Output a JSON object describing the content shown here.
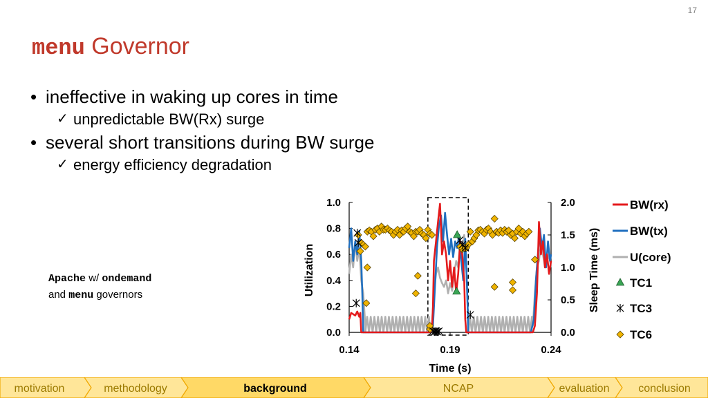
{
  "page": {
    "number": "17"
  },
  "title": {
    "mono": "menu",
    "text": "Governor"
  },
  "bullets": [
    {
      "text": "ineffective in waking up cores in time",
      "sub": "unpredictable BW(Rx) surge"
    },
    {
      "text": "several short  transitions during BW surge",
      "sub": "energy efficiency degradation"
    }
  ],
  "note": {
    "line1_mono_a": "Apache",
    "line1_text": "w/",
    "line1_mono_b": "ondemand",
    "line2_text": "and",
    "line2_mono": "menu",
    "line2_tail": "governors"
  },
  "nav": {
    "items": [
      "motivation",
      "methodology",
      "background",
      "NCAP",
      "evaluation",
      "conclusion"
    ],
    "active": "background",
    "colors": {
      "fill": "#ffe699",
      "active_fill": "#ffd966",
      "border": "#f0a800",
      "text": "#9c7a00",
      "active_text": "#000000"
    }
  },
  "chart_data": {
    "type": "line",
    "xlabel": "Time (s)",
    "ylabel_left": "Utilization",
    "ylabel_right": "Sleep Time (ms)",
    "xlim": [
      0.14,
      0.24
    ],
    "ylim_left": [
      0,
      1.0
    ],
    "ylim_right": [
      0,
      2.0
    ],
    "x_ticks": [
      "0.14",
      "0.19",
      "0.24"
    ],
    "y_ticks_left": [
      "0.0",
      "0.2",
      "0.4",
      "0.6",
      "0.8",
      "1.0"
    ],
    "y_ticks_right": [
      "0.0",
      "0.5",
      "1.0",
      "1.5",
      "2.0"
    ],
    "highlight_box": [
      0.179,
      0.199
    ],
    "series": [
      {
        "name": "BW(rx)",
        "axis": "left",
        "color": "#e41a1c",
        "style": "line",
        "x": [
          0.14,
          0.141,
          0.142,
          0.143,
          0.144,
          0.145,
          0.1455,
          0.146,
          0.147,
          0.176,
          0.18,
          0.181,
          0.1815,
          0.182,
          0.183,
          0.184,
          0.185,
          0.1855,
          0.186,
          0.187,
          0.188,
          0.189,
          0.19,
          0.191,
          0.192,
          0.193,
          0.194,
          0.195,
          0.196,
          0.197,
          0.1975,
          0.198,
          0.23,
          0.231,
          0.232,
          0.233,
          0.2335,
          0.234,
          0.235,
          0.236,
          0.237,
          0.238,
          0.239,
          0.24
        ],
        "y": [
          0.1,
          0.15,
          0.14,
          0.13,
          0.16,
          0.12,
          0.15,
          0.0,
          0.0,
          0.0,
          0.0,
          0.02,
          0.2,
          0.55,
          0.7,
          0.85,
          0.99,
          0.8,
          0.6,
          0.7,
          0.6,
          0.4,
          0.55,
          0.35,
          0.5,
          0.3,
          0.45,
          0.7,
          0.6,
          0.4,
          0.1,
          0.0,
          0.0,
          0.0,
          0.05,
          0.3,
          0.55,
          0.85,
          0.6,
          0.7,
          0.5,
          0.6,
          0.45,
          0.55
        ]
      },
      {
        "name": "BW(tx)",
        "axis": "left",
        "color": "#1f6fbf",
        "style": "line",
        "x": [
          0.14,
          0.141,
          0.142,
          0.143,
          0.144,
          0.145,
          0.146,
          0.1465,
          0.147,
          0.15,
          0.18,
          0.1815,
          0.1825,
          0.1835,
          0.1845,
          0.1855,
          0.1865,
          0.1875,
          0.1885,
          0.1895,
          0.1905,
          0.1915,
          0.1925,
          0.1935,
          0.1945,
          0.1955,
          0.1965,
          0.1975,
          0.1985,
          0.199,
          0.23,
          0.2315,
          0.2325,
          0.2335,
          0.2345,
          0.2355,
          0.2365,
          0.2375,
          0.2385,
          0.2395,
          0.24
        ],
        "y": [
          0.65,
          0.8,
          0.55,
          0.7,
          0.6,
          0.78,
          0.55,
          0.3,
          0.0,
          0.0,
          0.0,
          0.05,
          0.35,
          0.65,
          0.82,
          0.9,
          0.7,
          0.92,
          0.75,
          0.6,
          0.72,
          0.58,
          0.7,
          0.65,
          0.75,
          0.55,
          0.4,
          0.72,
          0.3,
          0.0,
          0.0,
          0.1,
          0.4,
          0.6,
          0.8,
          0.65,
          0.75,
          0.5,
          0.7,
          0.55,
          0.6
        ]
      },
      {
        "name": "U(core)",
        "axis": "left",
        "color": "#b0b0b0",
        "style": "line",
        "oscillate": {
          "from": 0.148,
          "to": 0.181,
          "from2": 0.199,
          "to2": 0.231,
          "low": 0.0,
          "high": 0.12,
          "period": 0.0018
        },
        "x": [
          0.14,
          0.141,
          0.142,
          0.143,
          0.144,
          0.145,
          0.146,
          0.147,
          0.148,
          0.152,
          0.1525,
          0.153,
          0.1535,
          0.154,
          0.181,
          0.182,
          0.183,
          0.184,
          0.185,
          0.186,
          0.187,
          0.188,
          0.189,
          0.19,
          0.191,
          0.192,
          0.193,
          0.194,
          0.195,
          0.196,
          0.197,
          0.198,
          0.199,
          0.231,
          0.232,
          0.233,
          0.234,
          0.235,
          0.236,
          0.237,
          0.238,
          0.239,
          0.24
        ],
        "y": [
          0.45,
          0.6,
          0.5,
          0.7,
          0.55,
          0.65,
          0.4,
          0.3,
          0.05,
          0.05,
          0.4,
          0.1,
          0.05,
          0.05,
          0.05,
          0.3,
          0.45,
          0.5,
          0.42,
          0.38,
          0.35,
          0.4,
          0.3,
          0.38,
          0.32,
          0.45,
          0.55,
          0.5,
          0.7,
          0.6,
          0.75,
          0.5,
          0.05,
          0.05,
          0.3,
          0.5,
          0.55,
          0.68,
          0.6,
          0.5,
          0.55,
          0.6,
          0.5
        ]
      },
      {
        "name": "TC1",
        "axis": "right",
        "color": "#3aa655",
        "style": "marker",
        "marker": "triangle",
        "x": [
          0.1935,
          0.1932
        ],
        "y": [
          1.5,
          0.63
        ]
      },
      {
        "name": "TC3",
        "axis": "right",
        "color": "#000000",
        "style": "marker",
        "marker": "star",
        "x": [
          0.144,
          0.1445,
          0.1435,
          0.1815,
          0.1822,
          0.183,
          0.1838,
          0.1845,
          0.1948,
          0.1962,
          0.1975,
          0.2
        ],
        "y": [
          1.53,
          1.38,
          0.45,
          0.02,
          0.01,
          0.02,
          0.01,
          0.02,
          1.42,
          1.35,
          1.3,
          0.27
        ]
      },
      {
        "name": "TC6",
        "axis": "right",
        "color": "#f0b400",
        "style": "marker",
        "marker": "diamond",
        "x": [
          0.1445,
          0.146,
          0.147,
          0.148,
          0.149,
          0.15,
          0.151,
          0.152,
          0.153,
          0.154,
          0.155,
          0.156,
          0.157,
          0.158,
          0.159,
          0.16,
          0.161,
          0.162,
          0.163,
          0.164,
          0.165,
          0.166,
          0.167,
          0.168,
          0.169,
          0.17,
          0.171,
          0.172,
          0.173,
          0.174,
          0.175,
          0.176,
          0.177,
          0.178,
          0.179,
          0.18,
          0.181,
          0.1455,
          0.149,
          0.1485,
          0.174,
          0.173,
          0.18,
          0.18,
          0.199,
          0.198,
          0.196,
          0.197,
          0.195,
          0.2,
          0.201,
          0.202,
          0.203,
          0.204,
          0.205,
          0.206,
          0.207,
          0.208,
          0.209,
          0.21,
          0.211,
          0.212,
          0.213,
          0.214,
          0.215,
          0.216,
          0.217,
          0.218,
          0.219,
          0.22,
          0.221,
          0.222,
          0.223,
          0.224,
          0.225,
          0.226,
          0.227,
          0.228,
          0.229,
          0.212,
          0.221,
          0.221,
          0.232
        ],
        "y": [
          1.5,
          1.38,
          1.35,
          1.32,
          1.55,
          1.57,
          1.55,
          1.48,
          1.58,
          1.6,
          1.55,
          1.63,
          1.58,
          1.58,
          1.6,
          1.57,
          1.55,
          1.5,
          1.55,
          1.58,
          1.5,
          1.57,
          1.55,
          1.6,
          1.63,
          1.55,
          1.53,
          1.48,
          1.55,
          1.55,
          1.58,
          1.52,
          1.5,
          1.45,
          1.58,
          1.52,
          1.5,
          1.25,
          1.0,
          0.45,
          0.87,
          0.6,
          0.05,
          0.1,
          1.35,
          1.3,
          1.28,
          1.3,
          1.32,
          1.55,
          1.4,
          1.45,
          1.5,
          1.57,
          1.58,
          1.55,
          1.52,
          1.58,
          1.6,
          1.55,
          1.5,
          1.75,
          1.55,
          1.53,
          1.57,
          1.53,
          1.58,
          1.55,
          1.57,
          1.5,
          1.52,
          1.45,
          1.55,
          1.6,
          1.52,
          1.55,
          1.48,
          1.52,
          1.55,
          0.7,
          0.77,
          0.65,
          1.12
        ]
      }
    ]
  }
}
